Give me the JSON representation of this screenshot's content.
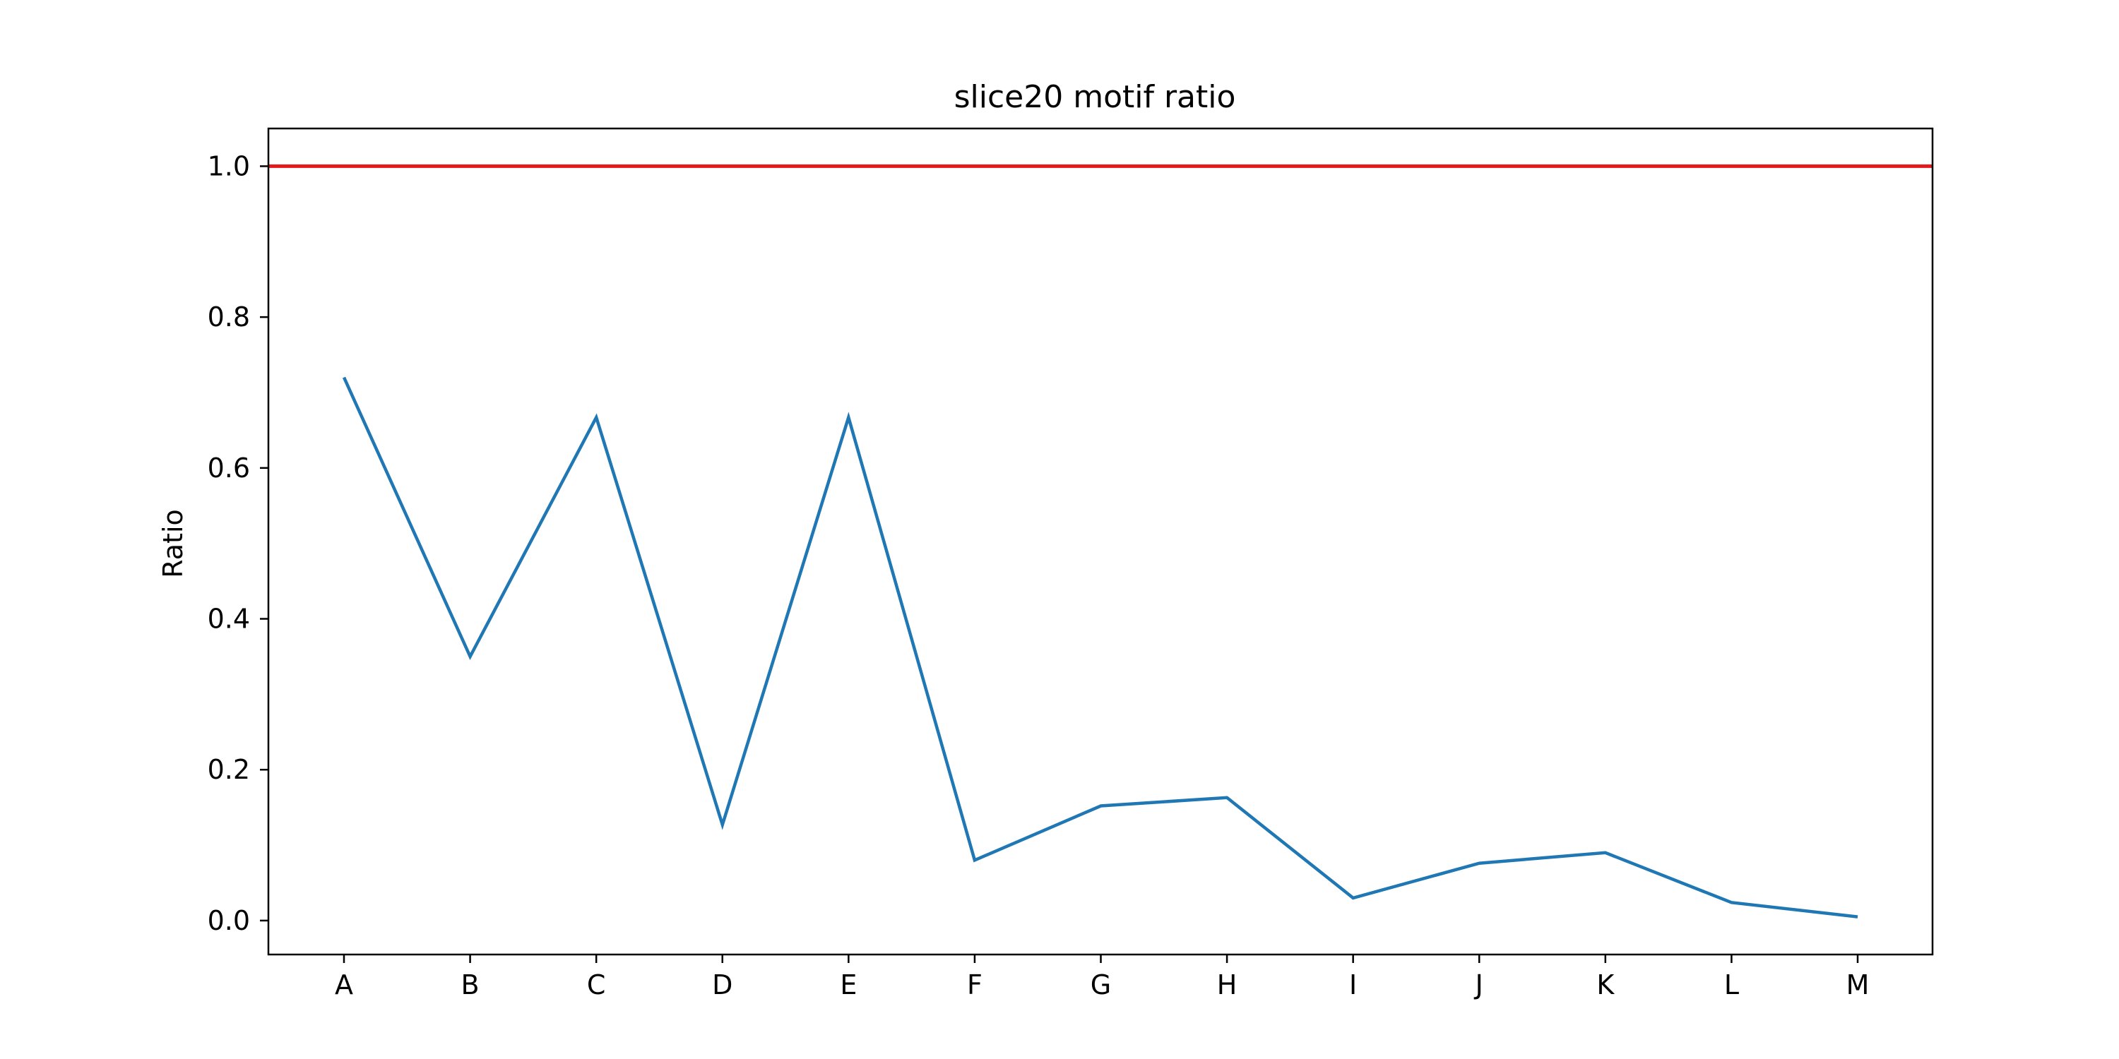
{
  "chart_data": {
    "type": "line",
    "title": "slice20 motif ratio",
    "xlabel": "",
    "ylabel": "Ratio",
    "categories": [
      "A",
      "B",
      "C",
      "D",
      "E",
      "F",
      "G",
      "H",
      "I",
      "J",
      "K",
      "L",
      "M"
    ],
    "series": [
      {
        "values": [
          0.72,
          0.35,
          0.667,
          0.127,
          0.667,
          0.08,
          0.152,
          0.163,
          0.03,
          0.076,
          0.09,
          0.024,
          0.005
        ],
        "color": "#1f77b4"
      }
    ],
    "reference_lines": [
      {
        "y": 1.0,
        "color": "#e31a1c"
      }
    ],
    "ylim": [
      -0.045,
      1.05
    ],
    "yticks": [
      0.0,
      0.2,
      0.4,
      0.6,
      0.8,
      1.0
    ],
    "ytick_labels": [
      "0.0",
      "0.2",
      "0.4",
      "0.6",
      "0.8",
      "1.0"
    ],
    "grid": false,
    "legend": "none"
  }
}
